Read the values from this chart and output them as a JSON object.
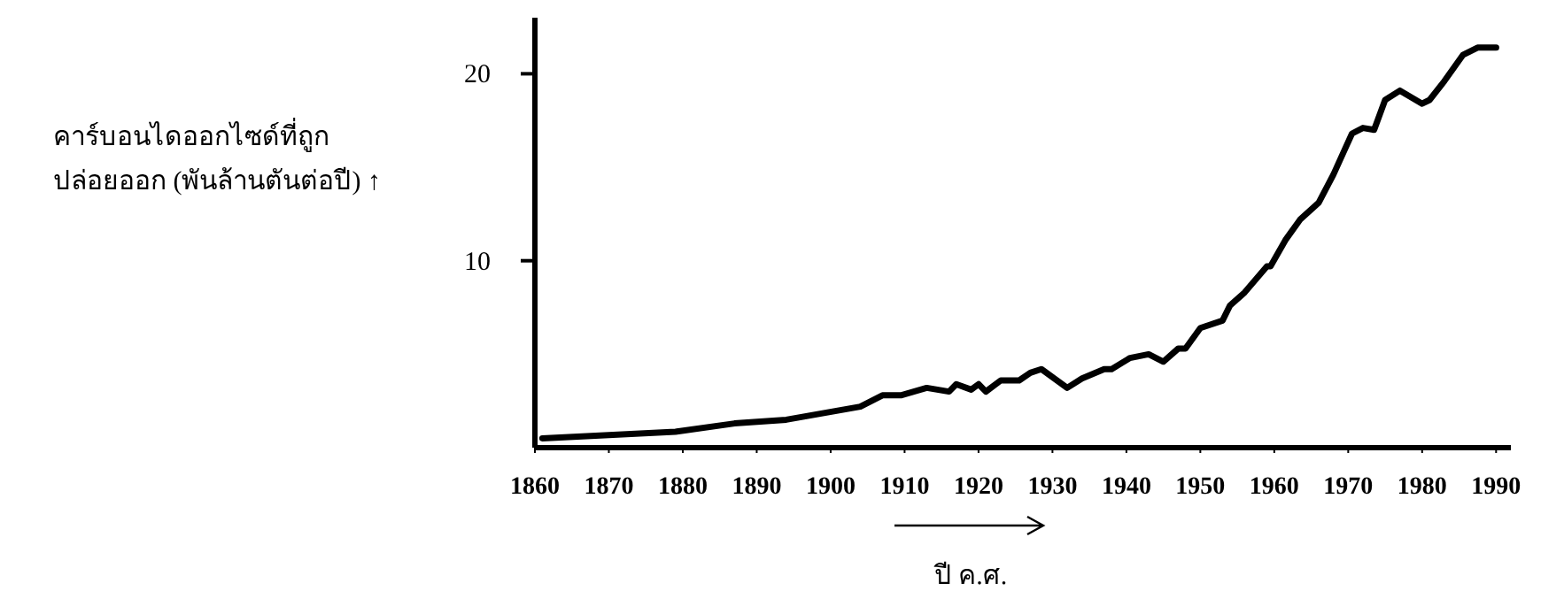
{
  "chart_data": {
    "type": "line",
    "xlabel": "ปี ค.ศ.",
    "ylabel": "คาร์บอนไดออกไซด์ที่ถูก\nปล่อยออก (พันล้านตันต่อปี) ↑",
    "xlim": [
      1860,
      1992
    ],
    "ylim": [
      0,
      23
    ],
    "xticks": [
      1860,
      1870,
      1880,
      1890,
      1900,
      1910,
      1920,
      1930,
      1940,
      1950,
      1960,
      1970,
      1980,
      1990
    ],
    "yticks": [
      10,
      20
    ],
    "grid": false,
    "series": [
      {
        "color": "#000000",
        "x": [
          1861,
          1879,
          1887,
          1894,
          1904,
          1907,
          1909.5,
          1913,
          1916,
          1917,
          1919,
          1920,
          1921,
          1923,
          1925.5,
          1927,
          1928.5,
          1932,
          1934,
          1937,
          1938,
          1940.5,
          1943,
          1945,
          1947,
          1948,
          1950,
          1953,
          1954,
          1956,
          1959,
          1959.5,
          1961.5,
          1963.5,
          1966,
          1968,
          1970.5,
          1972,
          1973.5,
          1975,
          1977,
          1980,
          1981,
          1983,
          1985.5,
          1987.5,
          1990
        ],
        "values": [
          0.5,
          0.85,
          1.3,
          1.5,
          2.2,
          2.8,
          2.8,
          3.2,
          3.0,
          3.4,
          3.1,
          3.4,
          3.0,
          3.6,
          3.6,
          4.0,
          4.2,
          3.2,
          3.7,
          4.2,
          4.2,
          4.8,
          5.0,
          4.6,
          5.3,
          5.3,
          6.4,
          6.8,
          7.6,
          8.3,
          9.7,
          9.7,
          11.1,
          12.2,
          13.1,
          14.6,
          16.8,
          17.1,
          17.0,
          18.6,
          19.1,
          18.4,
          18.6,
          19.6,
          21.0,
          21.4,
          21.4
        ]
      }
    ]
  }
}
